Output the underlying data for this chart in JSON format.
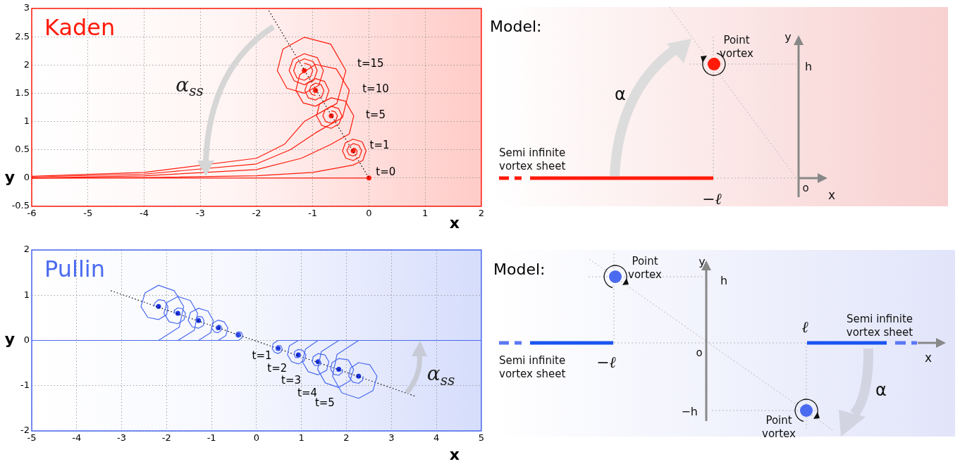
{
  "chart_data": [
    {
      "type": "line",
      "title": "Kaden",
      "xlabel": "x",
      "ylabel": "y",
      "xlim": [
        -6,
        2
      ],
      "ylim": [
        -0.5,
        3
      ],
      "xticks": [
        -6,
        -5,
        -4,
        -3,
        -2,
        -1,
        0,
        1,
        2
      ],
      "yticks": [
        -0.5,
        0,
        0.5,
        1,
        1.5,
        2,
        2.5,
        3
      ],
      "grid": true,
      "series": [
        {
          "color": "#ff1a0a",
          "x": [
            -6,
            -4,
            -2,
            -1,
            -0.6,
            -0.28,
            -0.11,
            -0.05,
            -0.12,
            -0.28,
            -0.42,
            -0.47,
            -0.41,
            -0.28,
            -0.17,
            -0.13,
            -0.18,
            -0.28,
            -0.36,
            -0.39,
            -0.35,
            -0.28,
            -0.22,
            -0.21,
            -0.24,
            -0.28
          ],
          "values": [
            0,
            0.01,
            0.04,
            0.1,
            0.17,
            0.23,
            0.31,
            0.48,
            0.64,
            0.69,
            0.62,
            0.48,
            0.35,
            0.31,
            0.37,
            0.48,
            0.58,
            0.61,
            0.56,
            0.48,
            0.41,
            0.39,
            0.42,
            0.48,
            0.52,
            0.53
          ]
        },
        {
          "color": "#ff1a0a",
          "x": [
            -6,
            -4,
            -2,
            -1.2,
            -0.67,
            -0.35,
            -0.27,
            -0.42,
            -0.67,
            -0.88,
            -0.93,
            -0.84,
            -0.67,
            -0.53,
            -0.48,
            -0.54,
            -0.67,
            -0.78,
            -0.82,
            -0.77,
            -0.67,
            -0.59,
            -0.56,
            -0.6,
            -0.67
          ],
          "values": [
            0,
            0.04,
            0.15,
            0.35,
            0.6,
            0.78,
            1.1,
            1.36,
            1.42,
            1.31,
            1.1,
            0.93,
            0.88,
            0.96,
            1.1,
            1.23,
            1.27,
            1.21,
            1.1,
            1,
            0.97,
            1.02,
            1.1,
            1.17,
            1.19
          ]
        },
        {
          "color": "#ff1a0a",
          "x": [
            -6,
            -4,
            -2,
            -1.4,
            -0.95,
            -0.47,
            -0.35,
            -0.58,
            -0.95,
            -1.23,
            -1.3,
            -1.17,
            -0.95,
            -0.77,
            -0.71,
            -0.79,
            -0.95,
            -1.09,
            -1.14,
            -1.08,
            -0.95,
            -0.84,
            -0.8,
            -0.85,
            -0.95,
            -1.03,
            -1.06,
            -1.02,
            -0.95
          ],
          "values": [
            0.02,
            0.07,
            0.25,
            0.5,
            0.8,
            1.07,
            1.55,
            1.93,
            2.01,
            1.83,
            1.55,
            1.33,
            1.27,
            1.37,
            1.55,
            1.71,
            1.76,
            1.69,
            1.55,
            1.42,
            1.38,
            1.44,
            1.55,
            1.65,
            1.68,
            1.63,
            1.55,
            1.48,
            1.46
          ]
        },
        {
          "color": "#ff1a0a",
          "x": [
            -6,
            -4,
            -2,
            -1.5,
            -1.15,
            -0.57,
            -0.41,
            -0.68,
            -1.15,
            -1.53,
            -1.63,
            -1.46,
            -1.15,
            -0.89,
            -0.81,
            -0.92,
            -1.15,
            -1.35,
            -1.42,
            -1.33,
            -1.15,
            -0.98,
            -0.92,
            -0.99,
            -1.15,
            -1.29,
            -1.34,
            -1.28,
            -1.15,
            -1.04,
            -1,
            -1.05,
            -1.15
          ],
          "values": [
            0.03,
            0.1,
            0.35,
            0.6,
            1,
            1.32,
            1.9,
            2.37,
            2.49,
            2.28,
            1.9,
            1.59,
            1.5,
            1.64,
            1.9,
            2.13,
            2.2,
            2.1,
            1.9,
            1.72,
            1.65,
            1.73,
            1.9,
            2.06,
            2.11,
            2.04,
            1.9,
            1.77,
            1.73,
            1.79,
            1.9,
            2,
            2.03
          ]
        },
        {
          "color": "#ff1a0a",
          "x": [
            -6,
            0
          ],
          "values": [
            0,
            0
          ]
        },
        {
          "color": "#000000",
          "line_style": "dotted",
          "x": [
            -1.78,
            0
          ],
          "values": [
            2.96,
            0
          ]
        },
        {
          "type": "scatter",
          "marker": "circle",
          "color": "#ff1a0a",
          "x": [
            0,
            -0.28,
            -0.67,
            -0.95,
            -1.15
          ],
          "values": [
            0,
            0.48,
            1.1,
            1.55,
            1.9
          ]
        }
      ],
      "annotations": [
        "t=15",
        "t=10",
        "t=5",
        "t=1",
        "t=0",
        "α$_{ss}$"
      ]
    },
    {
      "type": "other",
      "title": "Model:",
      "annotations": [
        "Point vortex",
        "Semi infinite vortex sheet",
        "α",
        "h",
        "y",
        "x",
        "o",
        "−ℓ"
      ]
    },
    {
      "type": "line",
      "title": "Pullin",
      "xlabel": "x",
      "ylabel": "y",
      "xlim": [
        -5,
        5
      ],
      "ylim": [
        -2,
        2
      ],
      "xticks": [
        -5,
        -4,
        -3,
        -2,
        -1,
        0,
        1,
        2,
        3,
        4,
        5
      ],
      "yticks": [
        -2,
        -1,
        0,
        1,
        2
      ],
      "grid": true,
      "series": [
        {
          "color": "#4a6af0",
          "x": [
            -5,
            -0.4,
            -0.33,
            -0.31,
            -0.34,
            -0.4,
            -0.45,
            -0.46,
            -0.44,
            -0.4,
            -0.37,
            -0.37,
            -0.38,
            -0.4,
            -0.41,
            -0.42
          ],
          "values": [
            0,
            0,
            0.05,
            0.12,
            0.18,
            0.19,
            0.17,
            0.12,
            0.08,
            0.07,
            0.09,
            0.12,
            0.14,
            0.14,
            0.13,
            0.12
          ]
        },
        {
          "color": "#4a6af0",
          "x": [
            -5,
            -0.85,
            -0.68,
            -0.64,
            -0.72,
            -0.85,
            -0.96,
            -1,
            -0.94,
            -0.85,
            -0.79,
            -0.77,
            -0.8,
            -0.85,
            -0.88,
            -0.89
          ],
          "values": [
            0,
            0,
            0.11,
            0.28,
            0.41,
            0.45,
            0.39,
            0.28,
            0.19,
            0.17,
            0.22,
            0.28,
            0.33,
            0.34,
            0.31,
            0.28
          ]
        },
        {
          "color": "#4a6af0",
          "x": [
            -5,
            -1.29,
            -1.02,
            -0.96,
            -1.08,
            -1.29,
            -1.47,
            -1.52,
            -1.43,
            -1.29,
            -1.18,
            -1.17,
            -1.21,
            -1.29,
            -1.34,
            -1.35
          ],
          "values": [
            0,
            0,
            0.17,
            0.44,
            0.65,
            0.71,
            0.62,
            0.44,
            0.3,
            0.27,
            0.33,
            0.44,
            0.52,
            0.53,
            0.49,
            0.44
          ]
        },
        {
          "color": "#4a6af0",
          "x": [
            -5,
            -1.75,
            -1.38,
            -1.31,
            -1.47,
            -1.75,
            -1.99,
            -2.06,
            -1.94,
            -1.75,
            -1.61,
            -1.58,
            -1.65,
            -1.75,
            -1.82,
            -1.83
          ],
          "values": [
            0,
            0,
            0.23,
            0.6,
            0.88,
            0.97,
            0.84,
            0.6,
            0.41,
            0.37,
            0.46,
            0.6,
            0.7,
            0.72,
            0.67,
            0.6
          ]
        },
        {
          "color": "#4a6af0",
          "x": [
            -5,
            -2.18,
            -1.72,
            -1.62,
            -1.83,
            -2.18,
            -2.48,
            -2.57,
            -2.42,
            -2.18,
            -2,
            -1.97,
            -2.05,
            -2.18,
            -2.26,
            -2.28
          ],
          "values": [
            0,
            0,
            0.29,
            0.75,
            1.1,
            1.22,
            1.05,
            0.75,
            0.51,
            0.46,
            0.57,
            0.75,
            0.88,
            0.9,
            0.83,
            0.75
          ]
        },
        {
          "color": "#4a6af0",
          "x": [
            5,
            0.48,
            0.37,
            0.35,
            0.4,
            0.48,
            0.55,
            0.57,
            0.54,
            0.48,
            0.44,
            0.43,
            0.45,
            0.48,
            0.5,
            0.5
          ],
          "values": [
            0,
            0,
            -0.07,
            -0.18,
            -0.26,
            -0.29,
            -0.25,
            -0.18,
            -0.12,
            -0.11,
            -0.14,
            -0.18,
            -0.21,
            -0.22,
            -0.2,
            -0.18
          ]
        },
        {
          "color": "#4a6af0",
          "x": [
            5,
            0.93,
            0.73,
            0.69,
            0.78,
            0.93,
            1.06,
            1.1,
            1.03,
            0.93,
            0.85,
            0.84,
            0.87,
            0.93,
            0.97,
            0.97
          ],
          "values": [
            0,
            0,
            -0.12,
            -0.32,
            -0.47,
            -0.52,
            -0.45,
            -0.32,
            -0.22,
            -0.2,
            -0.24,
            -0.32,
            -0.38,
            -0.38,
            -0.36,
            -0.32
          ]
        },
        {
          "color": "#4a6af0",
          "x": [
            5,
            1.37,
            1.09,
            1.02,
            1.15,
            1.37,
            1.56,
            1.61,
            1.52,
            1.37,
            1.26,
            1.24,
            1.29,
            1.37,
            1.43,
            1.43
          ],
          "values": [
            0,
            0,
            -0.19,
            -0.47,
            -0.69,
            -0.76,
            -0.66,
            -0.47,
            -0.32,
            -0.29,
            -0.36,
            -0.47,
            -0.55,
            -0.56,
            -0.53,
            -0.47
          ]
        },
        {
          "color": "#4a6af0",
          "x": [
            5,
            1.83,
            1.44,
            1.36,
            1.53,
            1.83,
            2.08,
            2.16,
            2.04,
            1.83,
            1.68,
            1.65,
            1.72,
            1.83,
            1.9,
            1.91
          ],
          "values": [
            0,
            0,
            -0.25,
            -0.64,
            -0.94,
            -1.04,
            -0.89,
            -0.64,
            -0.43,
            -0.4,
            -0.49,
            -0.64,
            -0.75,
            -0.77,
            -0.71,
            -0.64
          ]
        },
        {
          "color": "#4a6af0",
          "x": [
            5,
            2.27,
            1.79,
            1.69,
            1.9,
            2.27,
            2.59,
            2.68,
            2.52,
            2.27,
            2.09,
            2.05,
            2.14,
            2.27,
            2.36,
            2.37
          ],
          "values": [
            0,
            0,
            -0.31,
            -0.79,
            -1.16,
            -1.28,
            -1.11,
            -0.79,
            -0.54,
            -0.49,
            -0.61,
            -0.79,
            -0.92,
            -0.95,
            -0.88,
            -0.79
          ]
        },
        {
          "color": "#000000",
          "line_style": "dotted",
          "x": [
            -3.24,
            3.55
          ],
          "values": [
            1.1,
            -1.24
          ]
        },
        {
          "type": "scatter",
          "marker": "circle",
          "color": "#1a33e0",
          "x": [
            -2.18,
            -1.75,
            -1.29,
            -0.85,
            -0.4,
            0.48,
            0.93,
            1.37,
            1.83,
            2.27
          ],
          "values": [
            0.75,
            0.6,
            0.44,
            0.28,
            0.12,
            -0.18,
            -0.32,
            -0.47,
            -0.64,
            -0.79
          ]
        }
      ],
      "annotations": [
        "t=1",
        "t=2",
        "t=3",
        "t=4",
        "t=5",
        "α$_{ss}$"
      ]
    },
    {
      "type": "other",
      "title": "Model:",
      "annotations": [
        "Point vortex",
        "Point vortex",
        "Semi infinite vortex sheet",
        "Semi infinite vortex sheet",
        "−ℓ",
        "ℓ",
        "h",
        "−h",
        "y",
        "x",
        "o",
        "α"
      ]
    }
  ]
}
